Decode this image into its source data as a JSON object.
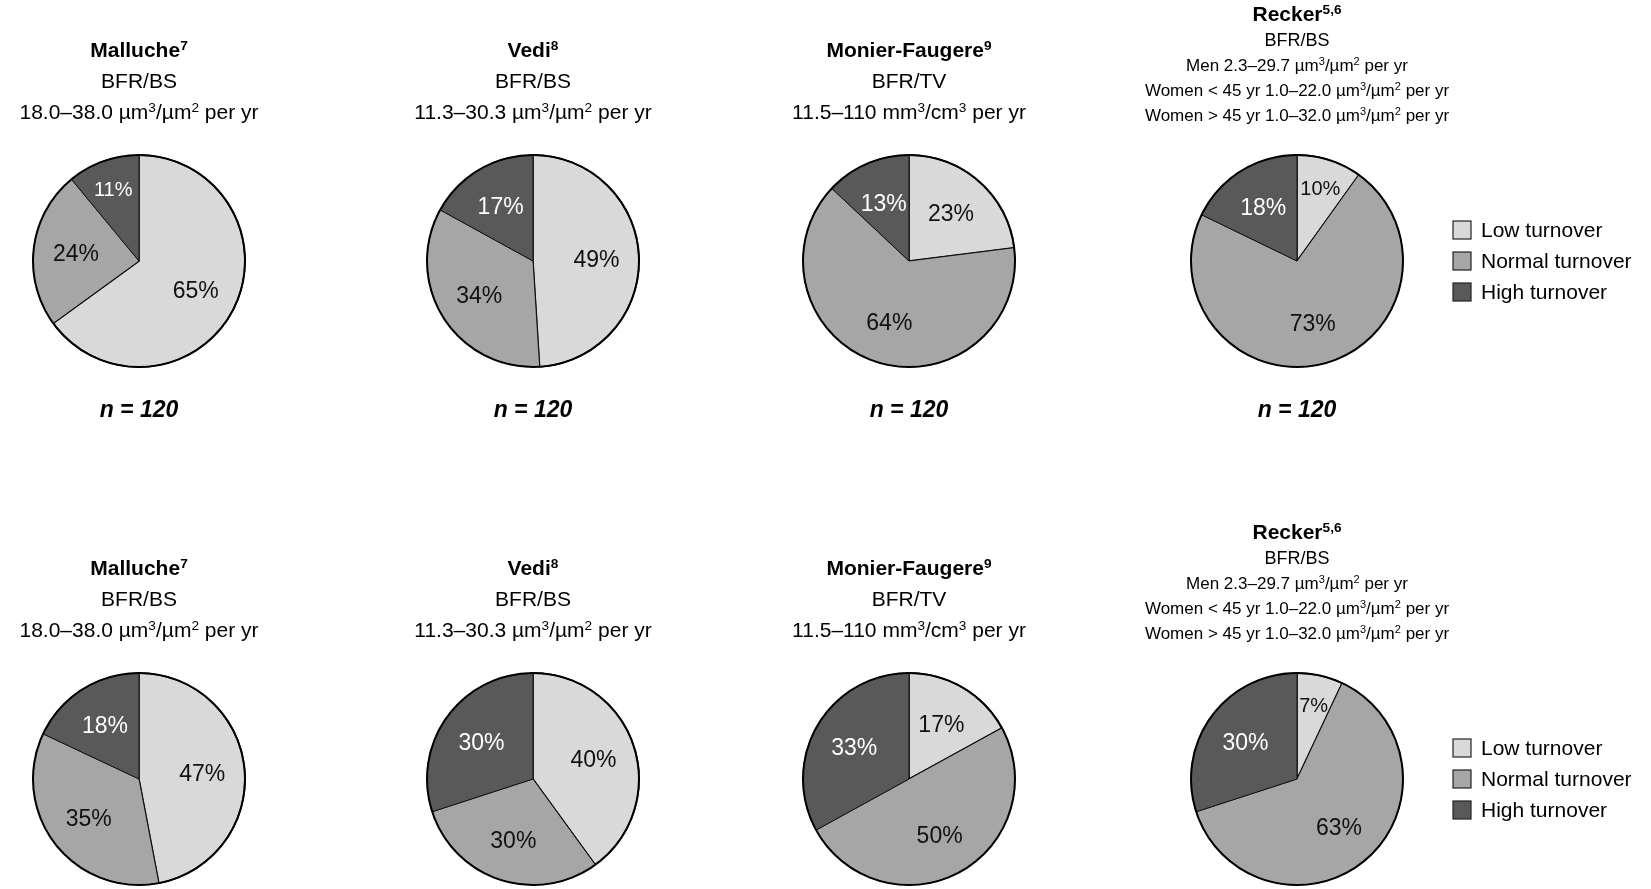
{
  "chart_data": [
    {
      "type": "pie",
      "title": "Malluche$^{7}$",
      "subtitle": "BFR/BS\n18.0–38.0 µm$^{3}$/µm$^{2}$ per yr",
      "categories": [
        null,
        null,
        null
      ],
      "values": [
        65,
        24,
        11
      ],
      "value_labels": [
        "65%",
        "24%",
        "11%"
      ],
      "colors": [
        "#d9d9d9",
        "#a6a6a6",
        "#595959"
      ],
      "legend": false,
      "annotations": [
        "n = 120"
      ]
    },
    {
      "type": "pie",
      "title": "Vedi$^{8}$",
      "subtitle": "BFR/BS\n11.3–30.3 µm$^{3}$/µm$^{2}$ per yr",
      "categories": [
        null,
        null,
        null
      ],
      "values": [
        49,
        34,
        17
      ],
      "value_labels": [
        "49%",
        "34%",
        "17%"
      ],
      "colors": [
        "#d9d9d9",
        "#a6a6a6",
        "#595959"
      ],
      "legend": false,
      "annotations": [
        "n = 120"
      ]
    },
    {
      "type": "pie",
      "title": "Monier-Faugere$^{9}$",
      "subtitle": "BFR/TV\n11.5–110 mm$^{3}$/cm$^{3}$ per yr",
      "categories": [
        null,
        null,
        null
      ],
      "values": [
        23,
        64,
        13
      ],
      "value_labels": [
        "23%",
        "64%",
        "13%"
      ],
      "colors": [
        "#d9d9d9",
        "#a6a6a6",
        "#595959"
      ],
      "legend": false,
      "annotations": [
        "n = 120"
      ]
    },
    {
      "type": "pie",
      "title": "Recker$^{5,6}$",
      "subtitle": "BFR/BS\nMen 2.3–29.7 µm$^{3}$/µm$^{2}$ per yr\nWomen < 45 yr 1.0–22.0 µm$^{3}$/µm$^{2}$ per yr\nWomen > 45 yr 1.0–32.0 µm$^{3}$/µm$^{2}$ per yr",
      "categories": [
        "Low turnover",
        "Normal turnover",
        "High turnover"
      ],
      "values": [
        10,
        73,
        18
      ],
      "value_labels": [
        "10%",
        "73%",
        "18%"
      ],
      "colors": [
        "#d9d9d9",
        "#a6a6a6",
        "#595959"
      ],
      "legend": "right",
      "annotations": [
        "n = 120"
      ]
    },
    {
      "type": "pie",
      "title": "Malluche$^{7}$",
      "subtitle": "BFR/BS\n18.0–38.0 µm$^{3}$/µm$^{2}$ per yr",
      "categories": [
        null,
        null,
        null
      ],
      "values": [
        47,
        35,
        18
      ],
      "value_labels": [
        "47%",
        "35%",
        "18%"
      ],
      "colors": [
        "#d9d9d9",
        "#a6a6a6",
        "#595959"
      ],
      "legend": false
    },
    {
      "type": "pie",
      "title": "Vedi$^{8}$",
      "subtitle": "BFR/BS\n11.3–30.3 µm$^{3}$/µm$^{2}$ per yr",
      "categories": [
        null,
        null,
        null
      ],
      "values": [
        40,
        30,
        30
      ],
      "value_labels": [
        "40%",
        "30%",
        "30%"
      ],
      "colors": [
        "#d9d9d9",
        "#a6a6a6",
        "#595959"
      ],
      "legend": false
    },
    {
      "type": "pie",
      "title": "Monier-Faugere$^{9}$",
      "subtitle": "BFR/TV\n11.5–110 mm$^{3}$/cm$^{3}$ per yr",
      "categories": [
        null,
        null,
        null
      ],
      "values": [
        17,
        50,
        33
      ],
      "value_labels": [
        "17%",
        "50%",
        "33%"
      ],
      "colors": [
        "#d9d9d9",
        "#a6a6a6",
        "#595959"
      ],
      "legend": false
    },
    {
      "type": "pie",
      "title": "Recker$^{5,6}$",
      "subtitle": "BFR/BS\nMen 2.3–29.7 µm$^{3}$/µm$^{2}$ per yr\nWomen < 45 yr 1.0–22.0 µm$^{3}$/µm$^{2}$ per yr\nWomen > 45 yr 1.0–32.0 µm$^{3}$/µm$^{2}$ per yr",
      "categories": [
        "Low turnover",
        "Normal turnover",
        "High turnover"
      ],
      "values": [
        7,
        63,
        30
      ],
      "value_labels": [
        "7%",
        "63%",
        "30%"
      ],
      "colors": [
        "#d9d9d9",
        "#a6a6a6",
        "#595959"
      ],
      "legend": "right"
    }
  ]
}
